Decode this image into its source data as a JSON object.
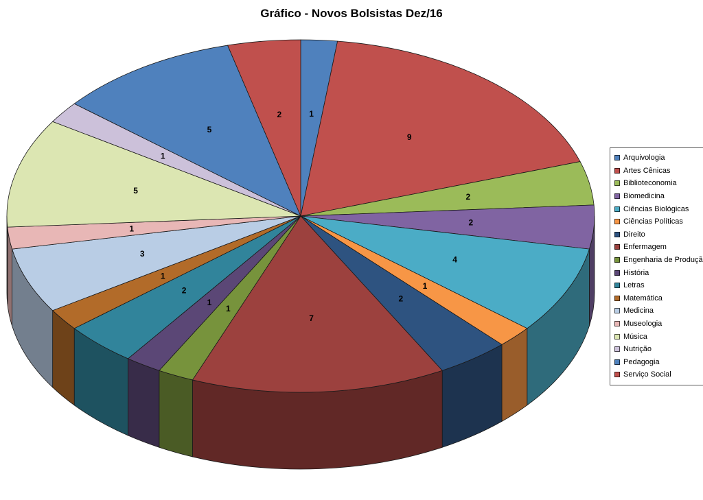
{
  "page": {
    "background": "#FFFFFF"
  },
  "chart_data": {
    "type": "pie",
    "style": "3d",
    "title": "Gráfico - Novos Bolsistas Dez/16",
    "legend_position": "right",
    "start_angle_deg": 0,
    "direction": "clockwise",
    "data_labels": "value",
    "total": 50,
    "categories": [
      "Arquivologia",
      "Artes Cênicas",
      "Biblioteconomia",
      "Biomedicina",
      "Ciências Biológicas",
      "Ciências Políticas",
      "Direito",
      "Enfermagem",
      "Engenharia de Produção",
      "História",
      "Letras",
      "Matemática",
      "Medicina",
      "Museologia",
      "Música",
      "Nutrição",
      "Pedagogia",
      "Serviço Social"
    ],
    "values": [
      1,
      9,
      2,
      2,
      4,
      1,
      2,
      7,
      1,
      1,
      2,
      1,
      3,
      1,
      5,
      1,
      5,
      2
    ],
    "colors": [
      "#4F81BD",
      "#C0504D",
      "#9BBB59",
      "#8064A2",
      "#4BACC6",
      "#F79646",
      "#2E5380",
      "#9C413E",
      "#77933C",
      "#5B4776",
      "#31849B",
      "#B26B29",
      "#B9CDE5",
      "#E8B7B6",
      "#DCE6B2",
      "#CCC1DA",
      "#4F81BD",
      "#C0504D"
    ]
  }
}
